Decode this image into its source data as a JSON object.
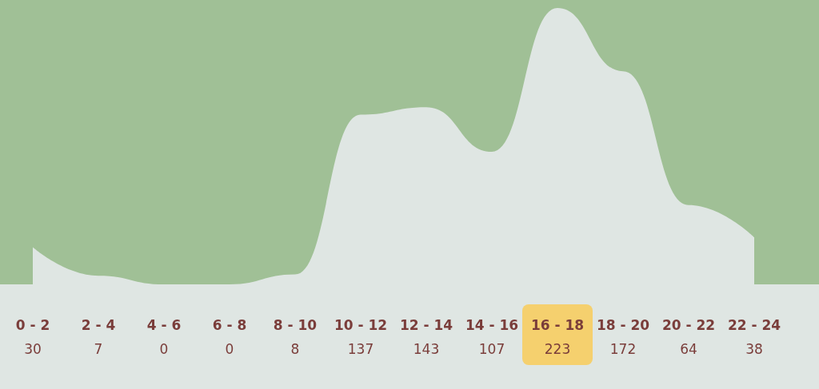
{
  "chart_data": {
    "type": "area",
    "categories": [
      "0 - 2",
      "2 - 4",
      "4 - 6",
      "6 - 8",
      "8 - 10",
      "10 - 12",
      "12 - 14",
      "14 - 16",
      "16 - 18",
      "18 - 20",
      "20 - 22",
      "22 - 24"
    ],
    "values": [
      30,
      7,
      0,
      0,
      8,
      137,
      143,
      107,
      223,
      172,
      64,
      38
    ],
    "color": "#dfe6e3",
    "data_labels": true
  }
}
